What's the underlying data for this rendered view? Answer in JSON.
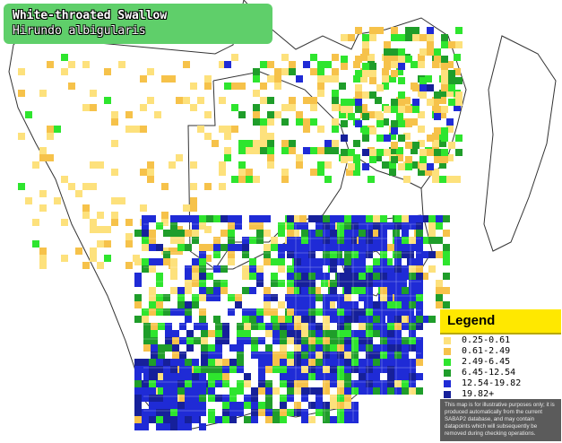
{
  "title": {
    "common_name": "White-throated Swallow",
    "scientific_name": "Hirundo albigularis"
  },
  "legend": {
    "title": "Legend",
    "ranges": [
      {
        "label": "0.25-0.61",
        "color": "#fde17c"
      },
      {
        "label": "0.61-2.49",
        "color": "#f6c24a"
      },
      {
        "label": "2.49-6.45",
        "color": "#2ee52e"
      },
      {
        "label": "6.45-12.54",
        "color": "#1f9d2a"
      },
      {
        "label": "12.54-19.82",
        "color": "#1f2bd6"
      },
      {
        "label": "19.82+",
        "color": "#16209a"
      }
    ],
    "disclaimer": "This map is for illustrative purposes only; it is produced automatically from the current SABAP2 database, and may contain datapoints which will subsequently be removed during checking operations."
  },
  "map": {
    "base_color": "#ffffff",
    "border_color": "#333333"
  }
}
